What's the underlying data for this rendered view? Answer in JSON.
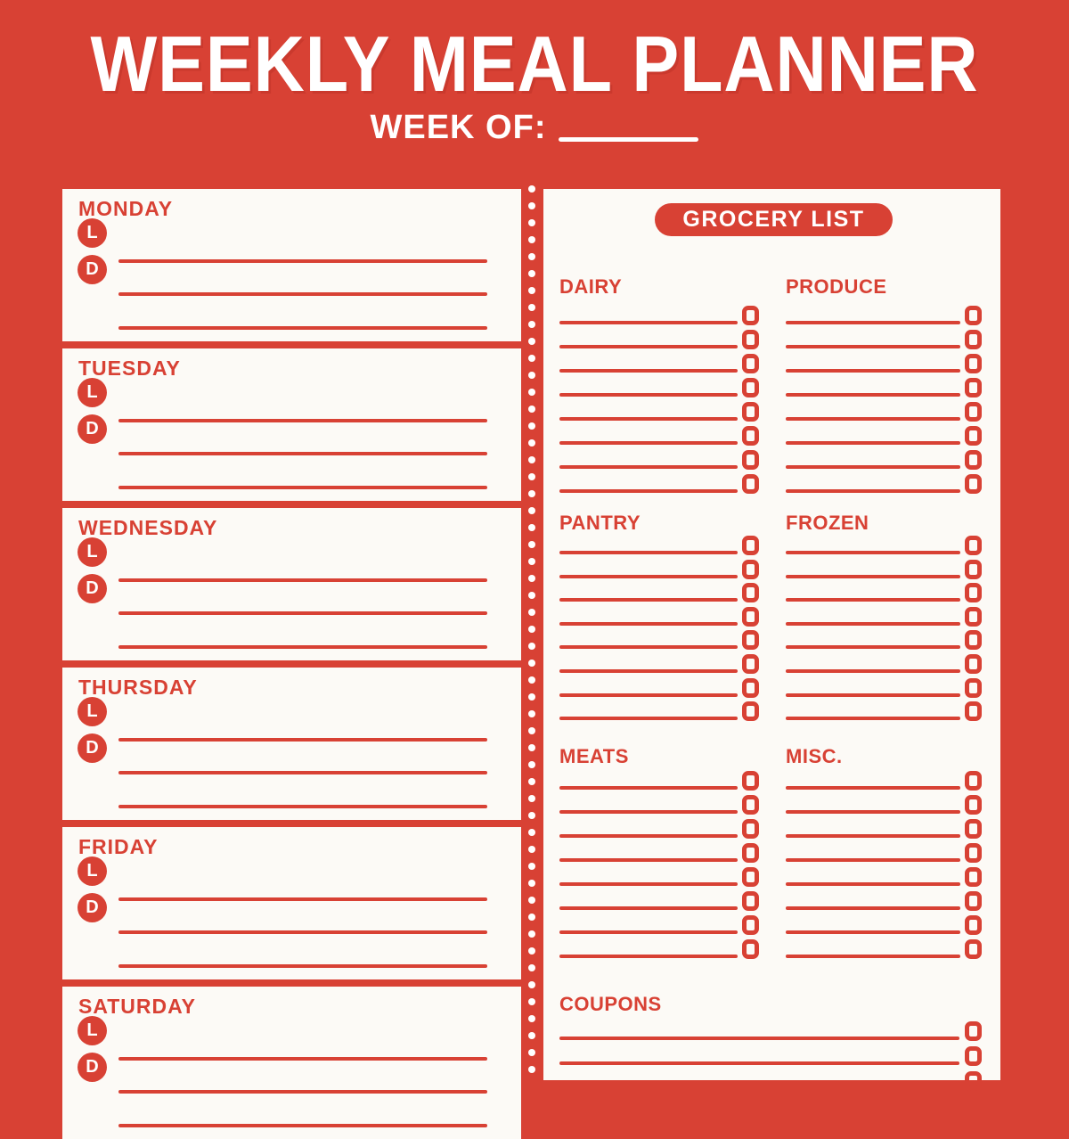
{
  "header": {
    "title": "WEEKLY MEAL PLANNER",
    "week_of_label": "WEEK OF:",
    "week_of_value": ""
  },
  "colors": {
    "background": "#d84134",
    "panel": "#fcfaf6",
    "accent": "#d84134",
    "text_on_accent": "#ffffff"
  },
  "meal_planner": {
    "meal_labels": {
      "lunch": "L",
      "dinner": "D"
    },
    "lines_per_day": 3,
    "days": [
      {
        "name": "MONDAY"
      },
      {
        "name": "TUESDAY"
      },
      {
        "name": "WEDNESDAY"
      },
      {
        "name": "THURSDAY"
      },
      {
        "name": "FRIDAY"
      },
      {
        "name": "SATURDAY"
      }
    ]
  },
  "grocery_list": {
    "badge_label": "GROCERY LIST",
    "checkbox_icon": "checkbox-outline-icon",
    "sections": [
      {
        "name": "DAIRY",
        "rows": 8
      },
      {
        "name": "PRODUCE",
        "rows": 8
      },
      {
        "name": "PANTRY",
        "rows": 8
      },
      {
        "name": "FROZEN",
        "rows": 8
      },
      {
        "name": "MEATS",
        "rows": 8
      },
      {
        "name": "MISC.",
        "rows": 8
      },
      {
        "name": "COUPONS",
        "rows": 3,
        "full_width": true
      }
    ]
  }
}
